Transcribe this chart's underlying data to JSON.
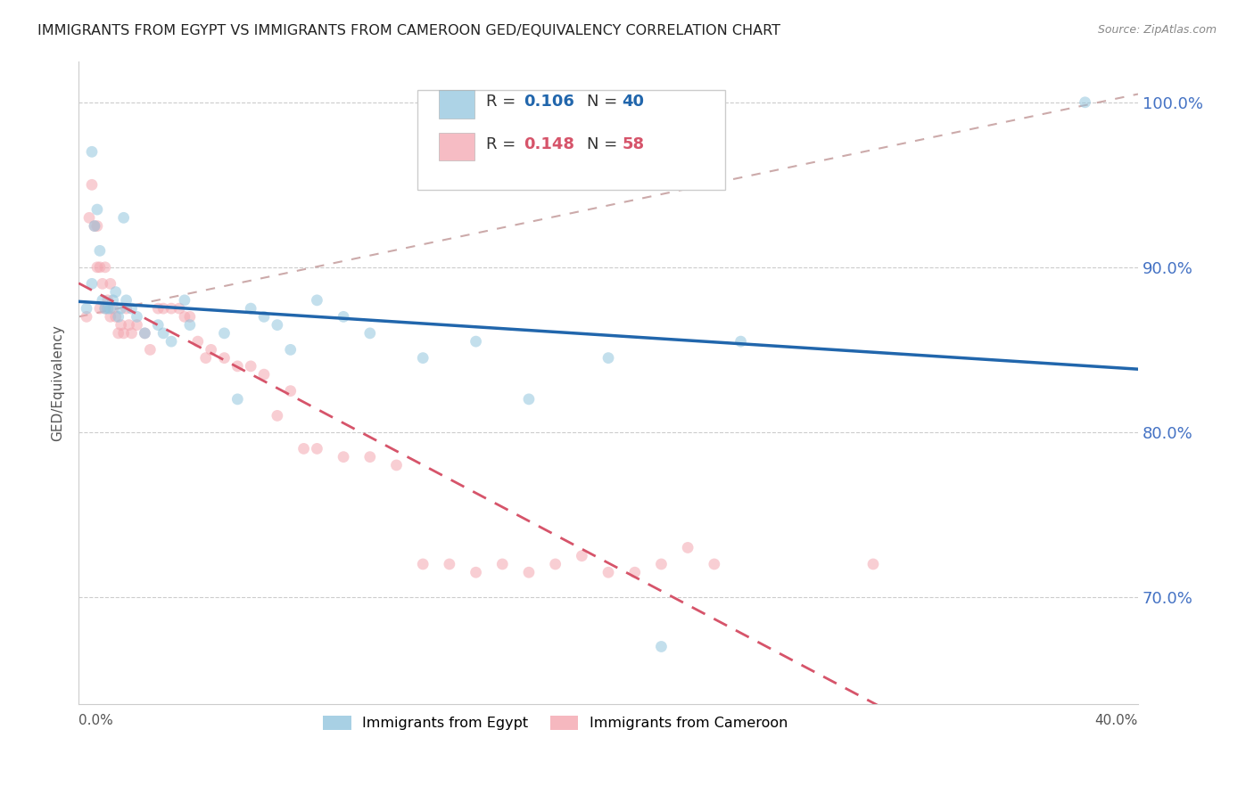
{
  "title": "IMMIGRANTS FROM EGYPT VS IMMIGRANTS FROM CAMEROON GED/EQUIVALENCY CORRELATION CHART",
  "source": "Source: ZipAtlas.com",
  "ylabel": "GED/Equivalency",
  "y_tick_values": [
    1.0,
    0.9,
    0.8,
    0.7
  ],
  "xlim": [
    0.0,
    0.4
  ],
  "ylim": [
    0.635,
    1.025
  ],
  "egypt_R": 0.106,
  "egypt_N": 40,
  "cameroon_R": 0.148,
  "cameroon_N": 58,
  "egypt_color": "#92c5de",
  "cameroon_color": "#f4a6b0",
  "egypt_line_color": "#2166ac",
  "cameroon_line_color": "#d6546a",
  "ref_line_color": "#ccaaaa",
  "legend_egypt_label": "Immigrants from Egypt",
  "legend_cameroon_label": "Immigrants from Cameroon",
  "egypt_x": [
    0.003,
    0.005,
    0.005,
    0.006,
    0.007,
    0.008,
    0.009,
    0.01,
    0.011,
    0.012,
    0.013,
    0.014,
    0.015,
    0.016,
    0.017,
    0.018,
    0.02,
    0.022,
    0.025,
    0.03,
    0.032,
    0.035,
    0.04,
    0.042,
    0.055,
    0.06,
    0.065,
    0.07,
    0.075,
    0.08,
    0.09,
    0.1,
    0.11,
    0.13,
    0.15,
    0.17,
    0.2,
    0.22,
    0.25,
    0.38
  ],
  "egypt_y": [
    0.875,
    0.97,
    0.89,
    0.925,
    0.935,
    0.91,
    0.88,
    0.875,
    0.875,
    0.875,
    0.88,
    0.885,
    0.87,
    0.875,
    0.93,
    0.88,
    0.875,
    0.87,
    0.86,
    0.865,
    0.86,
    0.855,
    0.88,
    0.865,
    0.86,
    0.82,
    0.875,
    0.87,
    0.865,
    0.85,
    0.88,
    0.87,
    0.86,
    0.845,
    0.855,
    0.82,
    0.845,
    0.67,
    0.855,
    1.0
  ],
  "cameroon_x": [
    0.003,
    0.004,
    0.005,
    0.006,
    0.007,
    0.007,
    0.008,
    0.008,
    0.009,
    0.01,
    0.01,
    0.011,
    0.012,
    0.012,
    0.013,
    0.014,
    0.015,
    0.016,
    0.017,
    0.018,
    0.019,
    0.02,
    0.022,
    0.025,
    0.027,
    0.03,
    0.032,
    0.035,
    0.038,
    0.04,
    0.042,
    0.045,
    0.048,
    0.05,
    0.055,
    0.06,
    0.065,
    0.07,
    0.075,
    0.08,
    0.085,
    0.09,
    0.1,
    0.11,
    0.12,
    0.13,
    0.14,
    0.15,
    0.16,
    0.17,
    0.18,
    0.19,
    0.2,
    0.21,
    0.22,
    0.23,
    0.24,
    0.3
  ],
  "cameroon_y": [
    0.87,
    0.93,
    0.95,
    0.925,
    0.925,
    0.9,
    0.9,
    0.875,
    0.89,
    0.875,
    0.9,
    0.88,
    0.87,
    0.89,
    0.875,
    0.87,
    0.86,
    0.865,
    0.86,
    0.875,
    0.865,
    0.86,
    0.865,
    0.86,
    0.85,
    0.875,
    0.875,
    0.875,
    0.875,
    0.87,
    0.87,
    0.855,
    0.845,
    0.85,
    0.845,
    0.84,
    0.84,
    0.835,
    0.81,
    0.825,
    0.79,
    0.79,
    0.785,
    0.785,
    0.78,
    0.72,
    0.72,
    0.715,
    0.72,
    0.715,
    0.72,
    0.725,
    0.715,
    0.715,
    0.72,
    0.73,
    0.72,
    0.72
  ],
  "background_color": "#ffffff",
  "grid_color": "#cccccc",
  "title_color": "#222222",
  "right_axis_color": "#4472c4",
  "marker_size": 85,
  "marker_alpha": 0.55,
  "title_fontsize": 11.5,
  "source_fontsize": 9,
  "legend_fontsize": 11.5,
  "axis_label_fontsize": 11,
  "tick_fontsize": 11
}
